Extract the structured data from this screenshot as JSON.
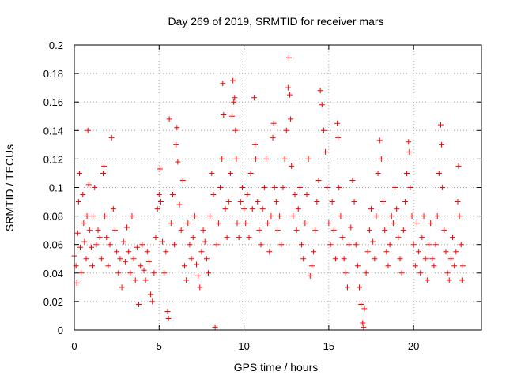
{
  "chart_data": {
    "type": "scatter",
    "title": "Day 269 of 2019, SRMTID for receiver mars",
    "xlabel": "GPS time / hours",
    "ylabel": "SRMTID / TECUs",
    "xlim": [
      0,
      24
    ],
    "ylim": [
      0,
      0.2
    ],
    "xticks": [
      0,
      5,
      10,
      15,
      20
    ],
    "xtick_labels": [
      "0",
      "5",
      "10",
      "15",
      "20"
    ],
    "yticks": [
      0,
      0.02,
      0.04,
      0.06,
      0.08,
      0.1,
      0.12,
      0.14,
      0.16,
      0.18,
      0.2
    ],
    "ytick_labels": [
      "0",
      "0.02",
      "0.04",
      "0.06",
      "0.08",
      "0.1",
      "0.12",
      "0.14",
      "0.16",
      "0.18",
      "0.2"
    ],
    "grid": true,
    "marker": "+",
    "color": "#ff0000",
    "series": [
      {
        "name": "SRMTID",
        "points": [
          [
            0.0,
            0.052
          ],
          [
            0.1,
            0.045
          ],
          [
            0.15,
            0.033
          ],
          [
            0.2,
            0.068
          ],
          [
            0.25,
            0.09
          ],
          [
            0.3,
            0.11
          ],
          [
            0.35,
            0.058
          ],
          [
            0.4,
            0.04
          ],
          [
            0.5,
            0.095
          ],
          [
            0.55,
            0.075
          ],
          [
            0.6,
            0.062
          ],
          [
            0.7,
            0.05
          ],
          [
            0.75,
            0.08
          ],
          [
            0.8,
            0.14
          ],
          [
            0.85,
            0.102
          ],
          [
            0.9,
            0.07
          ],
          [
            1.0,
            0.058
          ],
          [
            1.05,
            0.045
          ],
          [
            1.1,
            0.08
          ],
          [
            1.2,
            0.1
          ],
          [
            1.3,
            0.06
          ],
          [
            1.4,
            0.07
          ],
          [
            1.5,
            0.065
          ],
          [
            1.6,
            0.05
          ],
          [
            1.7,
            0.11
          ],
          [
            1.75,
            0.115
          ],
          [
            1.8,
            0.08
          ],
          [
            1.9,
            0.065
          ],
          [
            2.0,
            0.045
          ],
          [
            2.1,
            0.06
          ],
          [
            2.2,
            0.135
          ],
          [
            2.3,
            0.085
          ],
          [
            2.4,
            0.07
          ],
          [
            2.5,
            0.055
          ],
          [
            2.6,
            0.04
          ],
          [
            2.7,
            0.05
          ],
          [
            2.8,
            0.03
          ],
          [
            2.9,
            0.062
          ],
          [
            3.0,
            0.048
          ],
          [
            3.1,
            0.072
          ],
          [
            3.2,
            0.055
          ],
          [
            3.3,
            0.04
          ],
          [
            3.4,
            0.08
          ],
          [
            3.5,
            0.05
          ],
          [
            3.6,
            0.035
          ],
          [
            3.7,
            0.058
          ],
          [
            3.8,
            0.018
          ],
          [
            3.9,
            0.045
          ],
          [
            4.0,
            0.06
          ],
          [
            4.1,
            0.042
          ],
          [
            4.2,
            0.035
          ],
          [
            4.3,
            0.055
          ],
          [
            4.4,
            0.048
          ],
          [
            4.5,
            0.025
          ],
          [
            4.6,
            0.02
          ],
          [
            4.7,
            0.04
          ],
          [
            4.8,
            0.065
          ],
          [
            4.9,
            0.085
          ],
          [
            5.0,
            0.095
          ],
          [
            5.05,
            0.113
          ],
          [
            5.1,
            0.09
          ],
          [
            5.2,
            0.062
          ],
          [
            5.3,
            0.04
          ],
          [
            5.4,
            0.055
          ],
          [
            5.5,
            0.013
          ],
          [
            5.55,
            0.008
          ],
          [
            5.6,
            0.148
          ],
          [
            5.7,
            0.075
          ],
          [
            5.8,
            0.095
          ],
          [
            5.9,
            0.06
          ],
          [
            6.0,
            0.13
          ],
          [
            6.05,
            0.142
          ],
          [
            6.1,
            0.118
          ],
          [
            6.2,
            0.088
          ],
          [
            6.3,
            0.07
          ],
          [
            6.4,
            0.105
          ],
          [
            6.5,
            0.045
          ],
          [
            6.6,
            0.035
          ],
          [
            6.7,
            0.075
          ],
          [
            6.8,
            0.06
          ],
          [
            6.9,
            0.05
          ],
          [
            7.0,
            0.065
          ],
          [
            7.1,
            0.08
          ],
          [
            7.2,
            0.046
          ],
          [
            7.3,
            0.038
          ],
          [
            7.4,
            0.03
          ],
          [
            7.5,
            0.055
          ],
          [
            7.6,
            0.07
          ],
          [
            7.7,
            0.062
          ],
          [
            7.8,
            0.05
          ],
          [
            7.9,
            0.04
          ],
          [
            8.0,
            0.08
          ],
          [
            8.1,
            0.11
          ],
          [
            8.2,
            0.095
          ],
          [
            8.3,
            0.002
          ],
          [
            8.4,
            0.06
          ],
          [
            8.5,
            0.075
          ],
          [
            8.6,
            0.1
          ],
          [
            8.7,
            0.12
          ],
          [
            8.75,
            0.173
          ],
          [
            8.8,
            0.151
          ],
          [
            8.9,
            0.085
          ],
          [
            9.0,
            0.065
          ],
          [
            9.1,
            0.09
          ],
          [
            9.2,
            0.11
          ],
          [
            9.3,
            0.15
          ],
          [
            9.35,
            0.175
          ],
          [
            9.4,
            0.16
          ],
          [
            9.45,
            0.163
          ],
          [
            9.5,
            0.14
          ],
          [
            9.55,
            0.12
          ],
          [
            9.6,
            0.075
          ],
          [
            9.7,
            0.065
          ],
          [
            9.8,
            0.09
          ],
          [
            9.9,
            0.1
          ],
          [
            10.0,
            0.085
          ],
          [
            10.1,
            0.075
          ],
          [
            10.2,
            0.095
          ],
          [
            10.3,
            0.065
          ],
          [
            10.4,
            0.11
          ],
          [
            10.5,
            0.085
          ],
          [
            10.6,
            0.163
          ],
          [
            10.65,
            0.13
          ],
          [
            10.7,
            0.12
          ],
          [
            10.8,
            0.09
          ],
          [
            10.9,
            0.07
          ],
          [
            11.0,
            0.06
          ],
          [
            11.1,
            0.085
          ],
          [
            11.2,
            0.1
          ],
          [
            11.3,
            0.12
          ],
          [
            11.4,
            0.075
          ],
          [
            11.5,
            0.055
          ],
          [
            11.6,
            0.08
          ],
          [
            11.7,
            0.135
          ],
          [
            11.75,
            0.145
          ],
          [
            11.8,
            0.1
          ],
          [
            11.9,
            0.09
          ],
          [
            12.0,
            0.07
          ],
          [
            12.1,
            0.08
          ],
          [
            12.2,
            0.06
          ],
          [
            12.3,
            0.1
          ],
          [
            12.4,
            0.12
          ],
          [
            12.5,
            0.14
          ],
          [
            12.6,
            0.17
          ],
          [
            12.65,
            0.191
          ],
          [
            12.7,
            0.165
          ],
          [
            12.75,
            0.148
          ],
          [
            12.8,
            0.115
          ],
          [
            12.9,
            0.08
          ],
          [
            13.0,
            0.095
          ],
          [
            13.1,
            0.07
          ],
          [
            13.2,
            0.085
          ],
          [
            13.3,
            0.1
          ],
          [
            13.4,
            0.06
          ],
          [
            13.5,
            0.05
          ],
          [
            13.6,
            0.075
          ],
          [
            13.7,
            0.095
          ],
          [
            13.8,
            0.12
          ],
          [
            13.9,
            0.038
          ],
          [
            14.0,
            0.045
          ],
          [
            14.1,
            0.055
          ],
          [
            14.2,
            0.07
          ],
          [
            14.3,
            0.09
          ],
          [
            14.4,
            0.105
          ],
          [
            14.5,
            0.168
          ],
          [
            14.6,
            0.158
          ],
          [
            14.7,
            0.14
          ],
          [
            14.8,
            0.125
          ],
          [
            14.9,
            0.1
          ],
          [
            15.0,
            0.075
          ],
          [
            15.1,
            0.06
          ],
          [
            15.2,
            0.09
          ],
          [
            15.3,
            0.07
          ],
          [
            15.4,
            0.05
          ],
          [
            15.5,
            0.145
          ],
          [
            15.55,
            0.135
          ],
          [
            15.6,
            0.1
          ],
          [
            15.7,
            0.08
          ],
          [
            15.8,
            0.065
          ],
          [
            15.9,
            0.05
          ],
          [
            16.0,
            0.04
          ],
          [
            16.1,
            0.03
          ],
          [
            16.2,
            0.06
          ],
          [
            16.3,
            0.072
          ],
          [
            16.4,
            0.105
          ],
          [
            16.5,
            0.09
          ],
          [
            16.6,
            0.06
          ],
          [
            16.7,
            0.045
          ],
          [
            16.8,
            0.03
          ],
          [
            16.9,
            0.018
          ],
          [
            17.0,
            0.005
          ],
          [
            17.05,
            0.002
          ],
          [
            17.1,
            0.015
          ],
          [
            17.2,
            0.04
          ],
          [
            17.3,
            0.055
          ],
          [
            17.4,
            0.07
          ],
          [
            17.5,
            0.085
          ],
          [
            17.6,
            0.062
          ],
          [
            17.7,
            0.05
          ],
          [
            17.8,
            0.08
          ],
          [
            17.9,
            0.11
          ],
          [
            18.0,
            0.133
          ],
          [
            18.1,
            0.12
          ],
          [
            18.2,
            0.09
          ],
          [
            18.3,
            0.07
          ],
          [
            18.4,
            0.055
          ],
          [
            18.5,
            0.045
          ],
          [
            18.6,
            0.06
          ],
          [
            18.7,
            0.08
          ],
          [
            18.8,
            0.075
          ],
          [
            18.9,
            0.1
          ],
          [
            19.0,
            0.085
          ],
          [
            19.1,
            0.065
          ],
          [
            19.2,
            0.05
          ],
          [
            19.3,
            0.04
          ],
          [
            19.4,
            0.07
          ],
          [
            19.5,
            0.09
          ],
          [
            19.6,
            0.11
          ],
          [
            19.7,
            0.132
          ],
          [
            19.75,
            0.125
          ],
          [
            19.8,
            0.1
          ],
          [
            19.9,
            0.08
          ],
          [
            20.0,
            0.06
          ],
          [
            20.1,
            0.045
          ],
          [
            20.2,
            0.075
          ],
          [
            20.3,
            0.055
          ],
          [
            20.4,
            0.04
          ],
          [
            20.5,
            0.065
          ],
          [
            20.6,
            0.08
          ],
          [
            20.7,
            0.05
          ],
          [
            20.8,
            0.035
          ],
          [
            20.9,
            0.06
          ],
          [
            21.0,
            0.075
          ],
          [
            21.1,
            0.05
          ],
          [
            21.2,
            0.045
          ],
          [
            21.3,
            0.06
          ],
          [
            21.4,
            0.08
          ],
          [
            21.5,
            0.11
          ],
          [
            21.6,
            0.144
          ],
          [
            21.65,
            0.13
          ],
          [
            21.7,
            0.1
          ],
          [
            21.8,
            0.07
          ],
          [
            21.9,
            0.055
          ],
          [
            22.0,
            0.04
          ],
          [
            22.1,
            0.035
          ],
          [
            22.2,
            0.05
          ],
          [
            22.3,
            0.065
          ],
          [
            22.4,
            0.045
          ],
          [
            22.5,
            0.055
          ],
          [
            22.6,
            0.09
          ],
          [
            22.65,
            0.115
          ],
          [
            22.7,
            0.08
          ],
          [
            22.8,
            0.06
          ],
          [
            22.85,
            0.035
          ],
          [
            22.9,
            0.045
          ]
        ]
      }
    ]
  }
}
